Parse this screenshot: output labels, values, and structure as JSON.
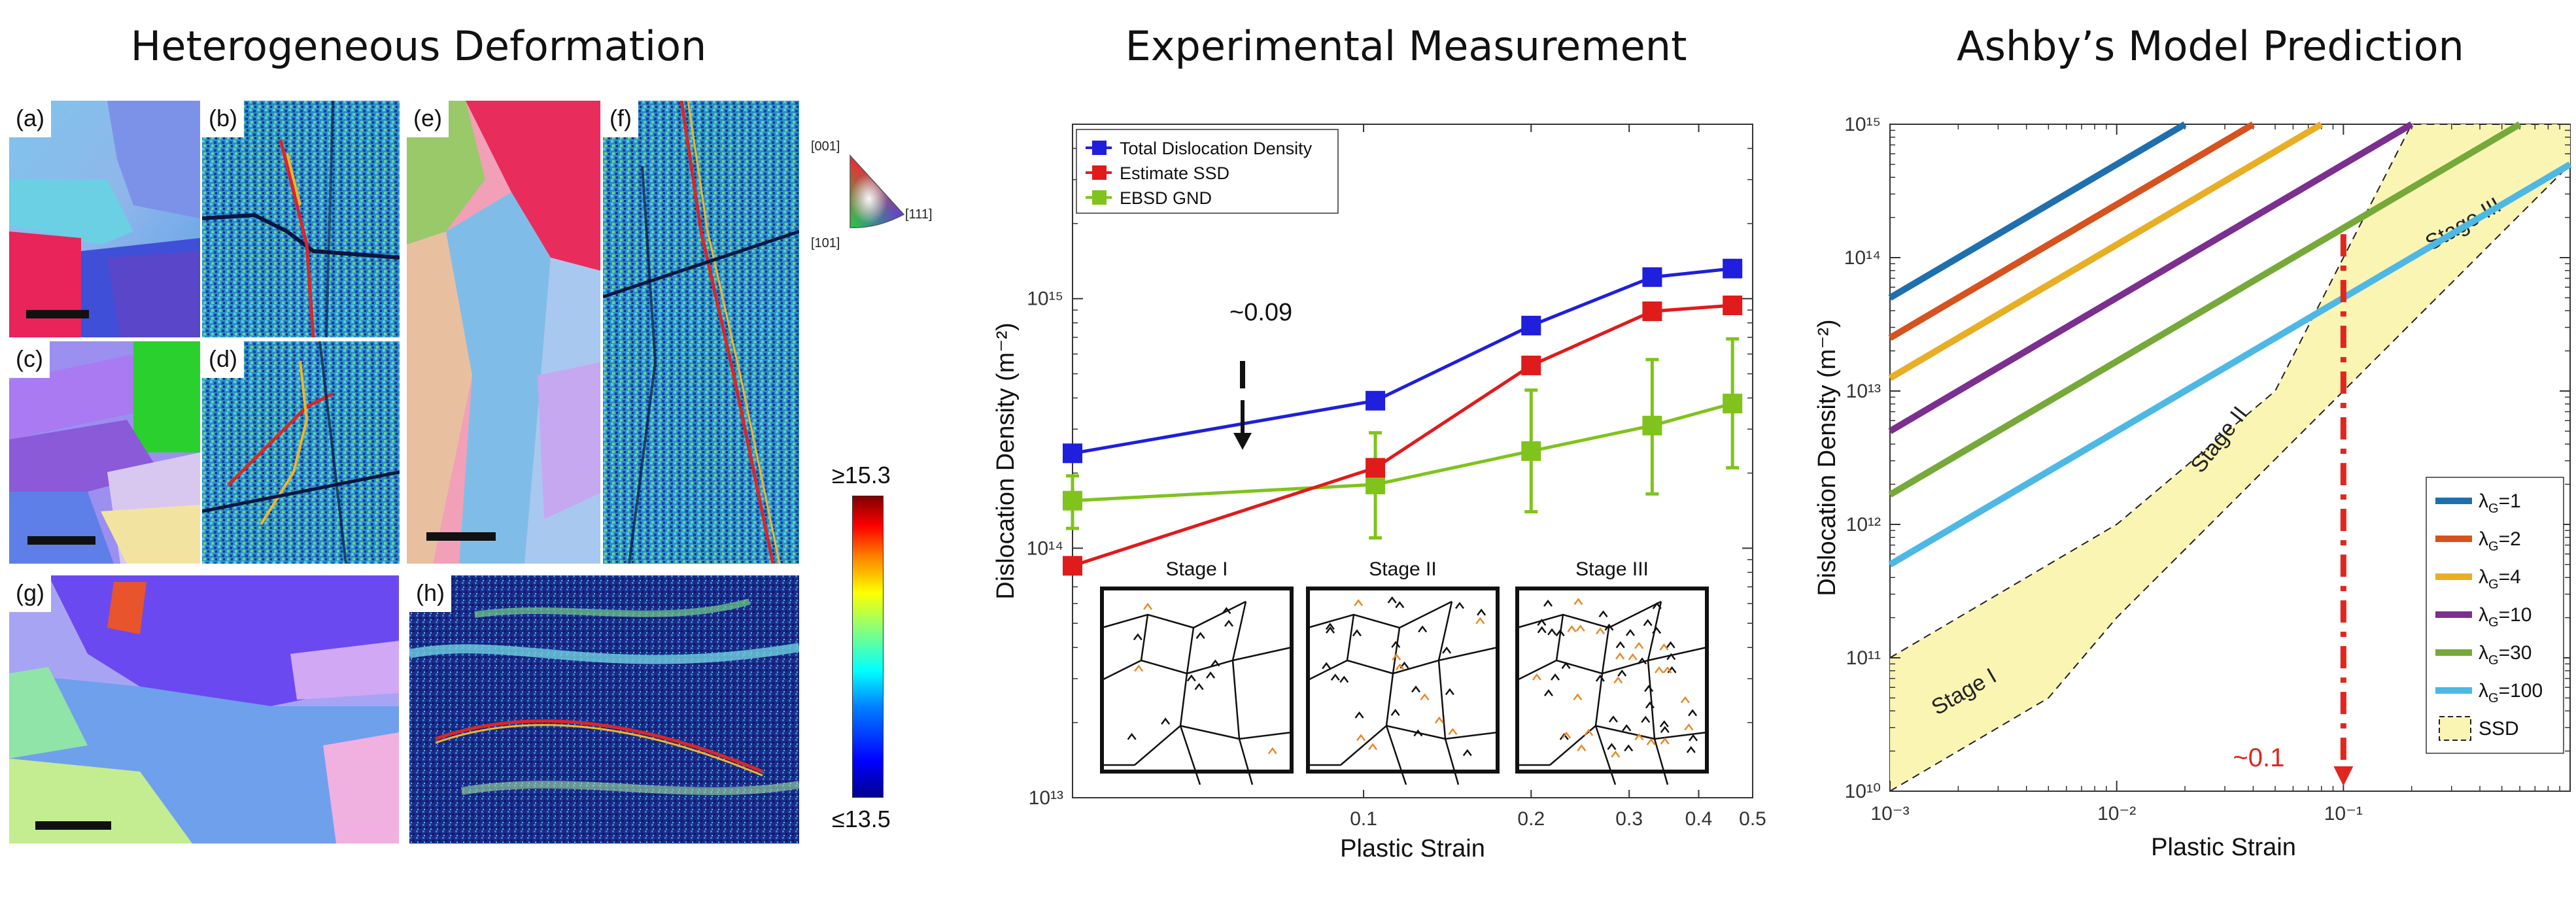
{
  "titles": {
    "left": "Heterogeneous Deformation",
    "middle": "Experimental Measurement",
    "right": "Ashby’s Model Prediction"
  },
  "panels": {
    "a": "(a)",
    "b": "(b)",
    "c": "(c)",
    "d": "(d)",
    "e": "(e)",
    "f": "(f)",
    "g": "(g)",
    "h": "(h)"
  },
  "ipf_key": {
    "top": "[001]",
    "left": "[101]",
    "right": "[111]"
  },
  "colorbar": {
    "max_label": "≥15.3",
    "min_label": "≤13.5"
  },
  "chart_data": [
    {
      "type": "line",
      "x_scale": "log",
      "y_scale": "log",
      "xlabel": "Plastic Strain",
      "ylabel": "Dislocation Density (m⁻²)",
      "xlim": [
        0.03,
        0.5
      ],
      "ylim": [
        10000000000000.0,
        5000000000000000.0
      ],
      "x_ticks": [
        0.1,
        0.2,
        0.3,
        0.4,
        0.5
      ],
      "x_tick_labels": [
        "0.1",
        "0.2",
        "0.3",
        "0.4",
        "0.5"
      ],
      "y_ticks": [
        10000000000000.0,
        100000000000000.0,
        1000000000000000.0
      ],
      "y_tick_labels": [
        "10¹³",
        "10¹⁴",
        "10¹⁵"
      ],
      "legend_position": "top-left",
      "series": [
        {
          "name": "Total Dislocation Density",
          "color": "#1f1fdd",
          "x": [
            0.03,
            0.105,
            0.2,
            0.33,
            0.46
          ],
          "y": [
            240000000000000.0,
            390000000000000.0,
            780000000000000.0,
            1220000000000000.0,
            1320000000000000.0
          ]
        },
        {
          "name": "Estimate SSD",
          "color": "#e01b1b",
          "x": [
            0.03,
            0.105,
            0.2,
            0.33,
            0.46
          ],
          "y": [
            85000000000000.0,
            210000000000000.0,
            540000000000000.0,
            890000000000000.0,
            940000000000000.0
          ]
        },
        {
          "name": "EBSD GND",
          "color": "#7fc31c",
          "x": [
            0.03,
            0.105,
            0.2,
            0.33,
            0.46
          ],
          "y": [
            155000000000000.0,
            180000000000000.0,
            245000000000000.0,
            310000000000000.0,
            380000000000000.0
          ],
          "err_low": [
            120000000000000.0,
            110000000000000.0,
            140000000000000.0,
            165000000000000.0,
            210000000000000.0
          ],
          "err_high": [
            195000000000000.0,
            290000000000000.0,
            430000000000000.0,
            570000000000000.0,
            690000000000000.0
          ]
        }
      ],
      "annotations": [
        "~0.09"
      ],
      "insets": [
        "Stage I",
        "Stage II",
        "Stage III"
      ]
    },
    {
      "type": "line",
      "x_scale": "log",
      "y_scale": "log",
      "xlabel": "Plastic Strain",
      "ylabel": "Dislocation Density (m⁻²)",
      "xlim": [
        0.001,
        1
      ],
      "ylim": [
        10000000000.0,
        1000000000000000.0
      ],
      "x_ticks": [
        0.001,
        0.01,
        0.1
      ],
      "x_tick_labels": [
        "10⁻³",
        "10⁻²",
        "10⁻¹"
      ],
      "y_ticks": [
        10000000000.0,
        100000000000.0,
        1000000000000.0,
        10000000000000.0,
        100000000000000.0,
        1000000000000000.0
      ],
      "y_tick_labels": [
        "10¹⁰",
        "10¹¹",
        "10¹²",
        "10¹³",
        "10¹⁴",
        "10¹⁵"
      ],
      "legend_position": "bottom-right",
      "series": [
        {
          "name": "λG=1",
          "lambda": "1",
          "color": "#1f6fae",
          "x": [
            0.001,
            0.02
          ],
          "y": [
            50000000000000.0,
            1000000000000000.0
          ]
        },
        {
          "name": "λG=2",
          "lambda": "2",
          "color": "#d6521e",
          "x": [
            0.001,
            0.04
          ],
          "y": [
            25000000000000.0,
            1000000000000000.0
          ]
        },
        {
          "name": "λG=4",
          "lambda": "4",
          "color": "#e8ae24",
          "x": [
            0.001,
            0.08
          ],
          "y": [
            12500000000000.0,
            1000000000000000.0
          ]
        },
        {
          "name": "λG=10",
          "lambda": "10",
          "color": "#7b2f8e",
          "x": [
            0.001,
            0.2
          ],
          "y": [
            5000000000000.0,
            1000000000000000.0
          ]
        },
        {
          "name": "λG=30",
          "lambda": "30",
          "color": "#76a93a",
          "x": [
            0.001,
            0.6
          ],
          "y": [
            1670000000000.0,
            1000000000000000.0
          ]
        },
        {
          "name": "λG=100",
          "lambda": "100",
          "color": "#4db8e4",
          "x": [
            0.001,
            1
          ],
          "y": [
            500000000000.0,
            500000000000000.0
          ]
        }
      ],
      "ssd_region": {
        "name": "SSD",
        "color": "#fbf5b4",
        "upper": {
          "x": [
            0.001,
            0.005,
            0.01,
            0.05,
            0.2,
            1
          ],
          "y": [
            100000000000.0,
            500000000000.0,
            1000000000000.0,
            10000000000000.0,
            1000000000000000.0,
            1000000000000000.0
          ]
        },
        "lower": {
          "x": [
            0.001,
            0.005,
            0.01,
            0.1,
            1
          ],
          "y": [
            10000000000.0,
            50000000000.0,
            200000000000.0,
            10000000000000.0,
            500000000000000.0
          ]
        },
        "stages": [
          "Stage I",
          "Stage II",
          "Stage III"
        ]
      },
      "marker": {
        "x": 0.1,
        "label": "~0.1",
        "color": "#e0261e"
      }
    }
  ]
}
